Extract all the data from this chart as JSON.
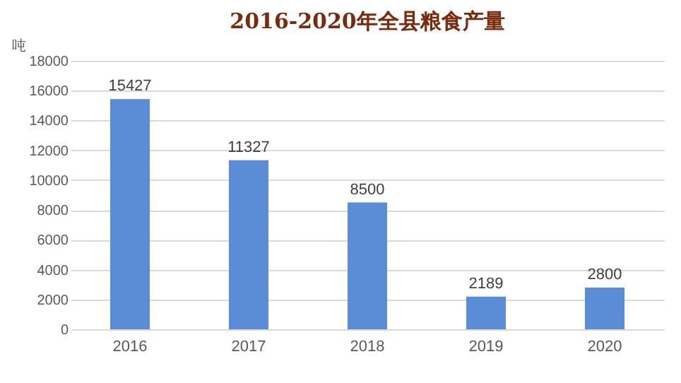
{
  "chart_data": {
    "type": "bar",
    "title": "2016-2020年全县粮食产量",
    "ylabel": "吨",
    "categories": [
      "2016",
      "2017",
      "2018",
      "2019",
      "2020"
    ],
    "values": [
      15427,
      11327,
      8500,
      2189,
      2800
    ],
    "color": "#5b8dd6",
    "ylim": [
      0,
      18000
    ],
    "yticks": [
      0,
      2000,
      4000,
      6000,
      8000,
      10000,
      12000,
      14000,
      16000,
      18000
    ],
    "grid": "y",
    "data_labels": true
  }
}
